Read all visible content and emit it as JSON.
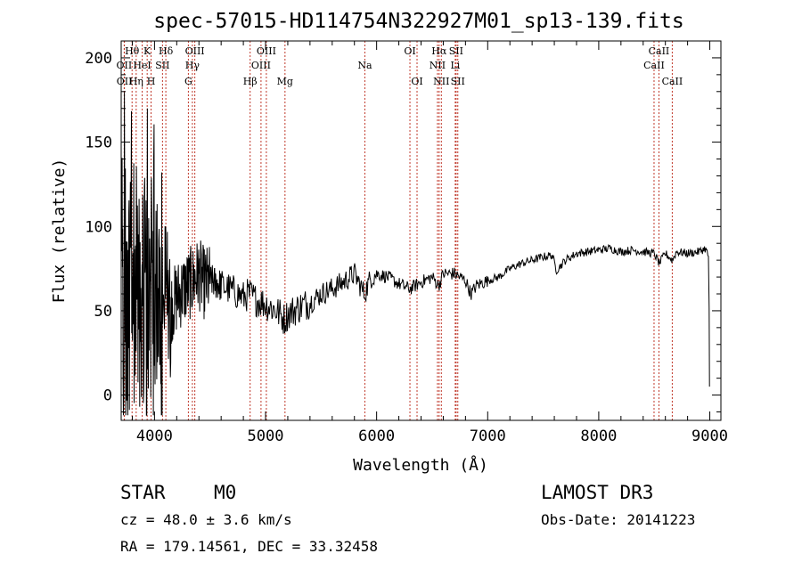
{
  "chart_data": {
    "type": "line",
    "title": "spec-57015-HD114754N322927M01_sp13-139.fits",
    "xlabel": "Wavelength (Å)",
    "ylabel": "Flux (relative)",
    "xlim": [
      3700,
      9100
    ],
    "ylim": [
      -15,
      210
    ],
    "xticks": [
      4000,
      5000,
      6000,
      7000,
      8000,
      9000
    ],
    "xtick_labels": [
      "4000",
      "5000",
      "6000",
      "7000",
      "8000",
      "9000"
    ],
    "yticks": [
      0,
      50,
      100,
      150,
      200
    ],
    "ytick_labels": [
      "0",
      "50",
      "100",
      "150",
      "200"
    ],
    "grid": false,
    "spectrum_anchors": {
      "wavelength": [
        3760,
        3800,
        3850,
        3900,
        3950,
        4000,
        4050,
        4100,
        4150,
        4200,
        4250,
        4300,
        4350,
        4400,
        4450,
        4500,
        4600,
        4700,
        4800,
        4850,
        4900,
        5000,
        5100,
        5170,
        5200,
        5300,
        5400,
        5500,
        5600,
        5700,
        5800,
        5890,
        5950,
        6000,
        6100,
        6200,
        6300,
        6400,
        6500,
        6560,
        6600,
        6700,
        6800,
        6850,
        6900,
        7000,
        7100,
        7200,
        7300,
        7400,
        7500,
        7580,
        7620,
        7700,
        7800,
        7900,
        8000,
        8100,
        8200,
        8300,
        8400,
        8500,
        8545,
        8600,
        8662,
        8700,
        8800,
        8900,
        8960,
        8990,
        9000
      ],
      "flux": [
        60,
        70,
        58,
        62,
        56,
        58,
        55,
        57,
        52,
        58,
        62,
        65,
        68,
        72,
        66,
        68,
        65,
        62,
        58,
        60,
        57,
        54,
        50,
        45,
        48,
        52,
        55,
        60,
        63,
        67,
        72,
        60,
        70,
        72,
        70,
        66,
        63,
        67,
        70,
        65,
        72,
        72,
        68,
        60,
        65,
        68,
        70,
        75,
        78,
        80,
        82,
        83,
        74,
        80,
        84,
        85,
        86,
        87,
        85,
        86,
        85,
        84,
        78,
        84,
        80,
        85,
        84,
        85,
        87,
        82,
        5
      ]
    },
    "spectral_lines": [
      {
        "label": "Hθ",
        "wavelength": 3798,
        "row": 0
      },
      {
        "label": "OII",
        "wavelength": 3727,
        "row": 1
      },
      {
        "label": "OII",
        "wavelength": 3729,
        "row": 2
      },
      {
        "label": "Hη",
        "wavelength": 3835,
        "row": 2
      },
      {
        "label": "HeI",
        "wavelength": 3889,
        "row": 1
      },
      {
        "label": "K",
        "wavelength": 3934,
        "row": 0
      },
      {
        "label": "H",
        "wavelength": 3969,
        "row": 2
      },
      {
        "label": "SII",
        "wavelength": 4072,
        "row": 1
      },
      {
        "label": "Hδ",
        "wavelength": 4102,
        "row": 0
      },
      {
        "label": "G",
        "wavelength": 4305,
        "row": 2
      },
      {
        "label": "Hγ",
        "wavelength": 4341,
        "row": 1
      },
      {
        "label": "OIII",
        "wavelength": 4363,
        "row": 0
      },
      {
        "label": "Hβ",
        "wavelength": 4861,
        "row": 2
      },
      {
        "label": "OIII",
        "wavelength": 4959,
        "row": 1
      },
      {
        "label": "OIII",
        "wavelength": 5007,
        "row": 0
      },
      {
        "label": "Mg",
        "wavelength": 5175,
        "row": 2
      },
      {
        "label": "Na",
        "wavelength": 5894,
        "row": 1
      },
      {
        "label": "OI",
        "wavelength": 6300,
        "row": 0
      },
      {
        "label": "OI",
        "wavelength": 6364,
        "row": 2
      },
      {
        "label": "NII",
        "wavelength": 6548,
        "row": 1
      },
      {
        "label": "Hα",
        "wavelength": 6563,
        "row": 0
      },
      {
        "label": "NII",
        "wavelength": 6583,
        "row": 2
      },
      {
        "label": "Li",
        "wavelength": 6708,
        "row": 1
      },
      {
        "label": "SII",
        "wavelength": 6716,
        "row": 0
      },
      {
        "label": "SII",
        "wavelength": 6731,
        "row": 2
      },
      {
        "label": "CaII",
        "wavelength": 8498,
        "row": 1
      },
      {
        "label": "CaII",
        "wavelength": 8542,
        "row": 0
      },
      {
        "label": "CaII",
        "wavelength": 8662,
        "row": 2
      }
    ]
  },
  "colors": {
    "spectrum": "#000000",
    "line_marker": "#c0392b",
    "axis": "#000000"
  },
  "info": {
    "class": "STAR",
    "subclass": "M0",
    "survey": "LAMOST DR3",
    "cz": "cz = 48.0 ± 3.6 km/s",
    "obs_date": "Obs-Date: 20141223",
    "coords": "RA = 179.14561, DEC =  33.32458"
  }
}
